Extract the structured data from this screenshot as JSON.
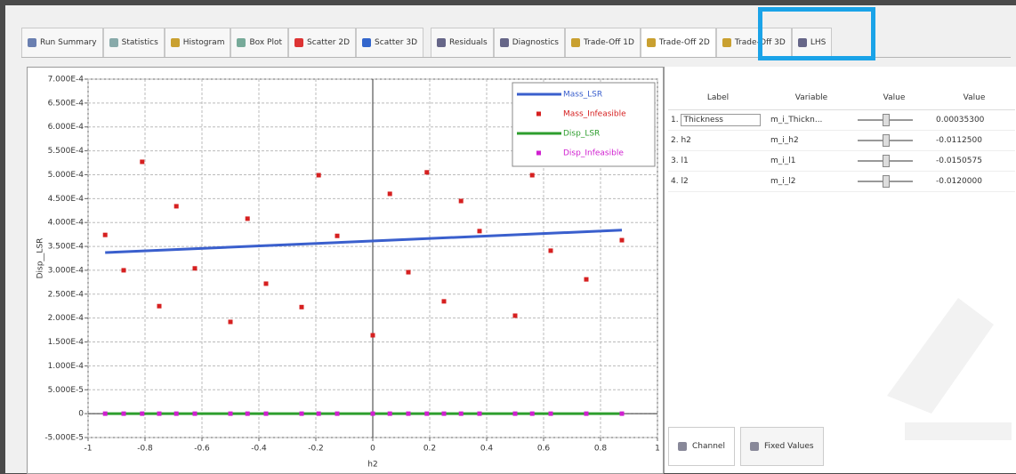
{
  "tabs": [
    "Run Summary",
    "Statistics",
    "Histogram",
    "Box Plot",
    "Scatter 2D",
    "Scatter 3D",
    "Residuals",
    "Diagnostics",
    "Trade-Off 1D",
    "Trade-Off 2D",
    "Trade-Off 3D",
    "LHS"
  ],
  "plot": {
    "type": "scatter",
    "xlabel": "h2",
    "ylabel": "Disp__LSR",
    "xlim": [
      -1,
      1
    ],
    "ylim": [
      -5e-05,
      0.0007
    ],
    "xticks": [
      -1,
      -0.8,
      -0.6,
      -0.4,
      -0.2,
      0,
      0.2,
      0.4,
      0.6,
      0.8,
      1
    ],
    "yticks": [
      {
        "value": -5e-05,
        "label": "-5.000E-5"
      },
      0,
      {
        "value": 5e-05,
        "label": "5.000E-5"
      },
      {
        "value": 0.0001,
        "label": "1.000E-4"
      },
      {
        "value": 0.00015,
        "label": "1.500E-4"
      },
      {
        "value": 0.0002,
        "label": "2.000E-4"
      },
      {
        "value": 0.00025,
        "label": "2.500E-4"
      },
      {
        "value": 0.0003,
        "label": "3.000E-4"
      },
      {
        "value": 0.00035,
        "label": "3.500E-4"
      },
      {
        "value": 0.0004,
        "label": "4.000E-4"
      },
      {
        "value": 0.00045,
        "label": "4.500E-4"
      },
      {
        "value": 0.0005,
        "label": "5.000E-4"
      },
      {
        "value": 0.00055,
        "label": "5.500E-4"
      },
      {
        "value": 0.0006,
        "label": "6.000E-4"
      },
      {
        "value": 0.00065,
        "label": "6.500E-4"
      },
      {
        "value": 0.0007,
        "label": "7.000E-4"
      }
    ],
    "grid": true,
    "series": [
      {
        "name": "Mass_LSR",
        "color": "#3a5fcd",
        "kind": "line",
        "x": [
          -0.94,
          0.875
        ],
        "values": [
          0.000337,
          0.000384
        ]
      },
      {
        "name": "Mass_Infeasible",
        "color": "#d62020",
        "kind": "points",
        "x": [
          -0.94,
          -0.875,
          -0.81,
          -0.75,
          -0.69,
          -0.625,
          -0.5,
          -0.44,
          -0.375,
          -0.25,
          -0.19,
          -0.125,
          0,
          0.06,
          0.125,
          0.19,
          0.25,
          0.31,
          0.375,
          0.5,
          0.56,
          0.625,
          0.75,
          0.875
        ],
        "values": [
          0.000374,
          0.0003,
          0.000527,
          0.000225,
          0.000434,
          0.000304,
          0.000192,
          0.000408,
          0.000272,
          0.000223,
          0.000499,
          0.000372,
          0.000164,
          0.00046,
          0.000296,
          0.000505,
          0.000235,
          0.000445,
          0.000382,
          0.000205,
          0.000499,
          0.000341,
          0.000281,
          0.000363
        ]
      },
      {
        "name": "Disp_LSR",
        "color": "#2e9e2e",
        "kind": "line",
        "x": [
          -0.94,
          0.875
        ],
        "values": [
          0,
          0
        ]
      },
      {
        "name": "Disp_Infeasible",
        "color": "#d020d0",
        "kind": "points",
        "x": [
          -0.94,
          -0.875,
          -0.81,
          -0.75,
          -0.69,
          -0.625,
          -0.5,
          -0.44,
          -0.375,
          -0.25,
          -0.19,
          -0.125,
          0,
          0.06,
          0.125,
          0.19,
          0.25,
          0.31,
          0.375,
          0.5,
          0.56,
          0.625,
          0.75,
          0.875
        ],
        "values": [
          0,
          0,
          0,
          0,
          0,
          0,
          0,
          0,
          0,
          0,
          0,
          0,
          0,
          0,
          0,
          0,
          0,
          0,
          0,
          0,
          0,
          0,
          0,
          0
        ]
      }
    ]
  },
  "table": {
    "headers": [
      "Label",
      "Variable",
      "Value",
      "Value"
    ],
    "rows": [
      [
        "1.",
        "Thickness",
        "m_i_Thickn...",
        "0.00035300"
      ],
      [
        "2.",
        "h2",
        "m_i_h2",
        "-0.0112500"
      ],
      [
        "3.",
        "l1",
        "m_i_l1",
        "-0.0150575"
      ],
      [
        "4.",
        "l2",
        "m_i_l2",
        "-0.0120000"
      ]
    ]
  },
  "bottom_tabs": [
    "Channel",
    "Fixed Values"
  ]
}
